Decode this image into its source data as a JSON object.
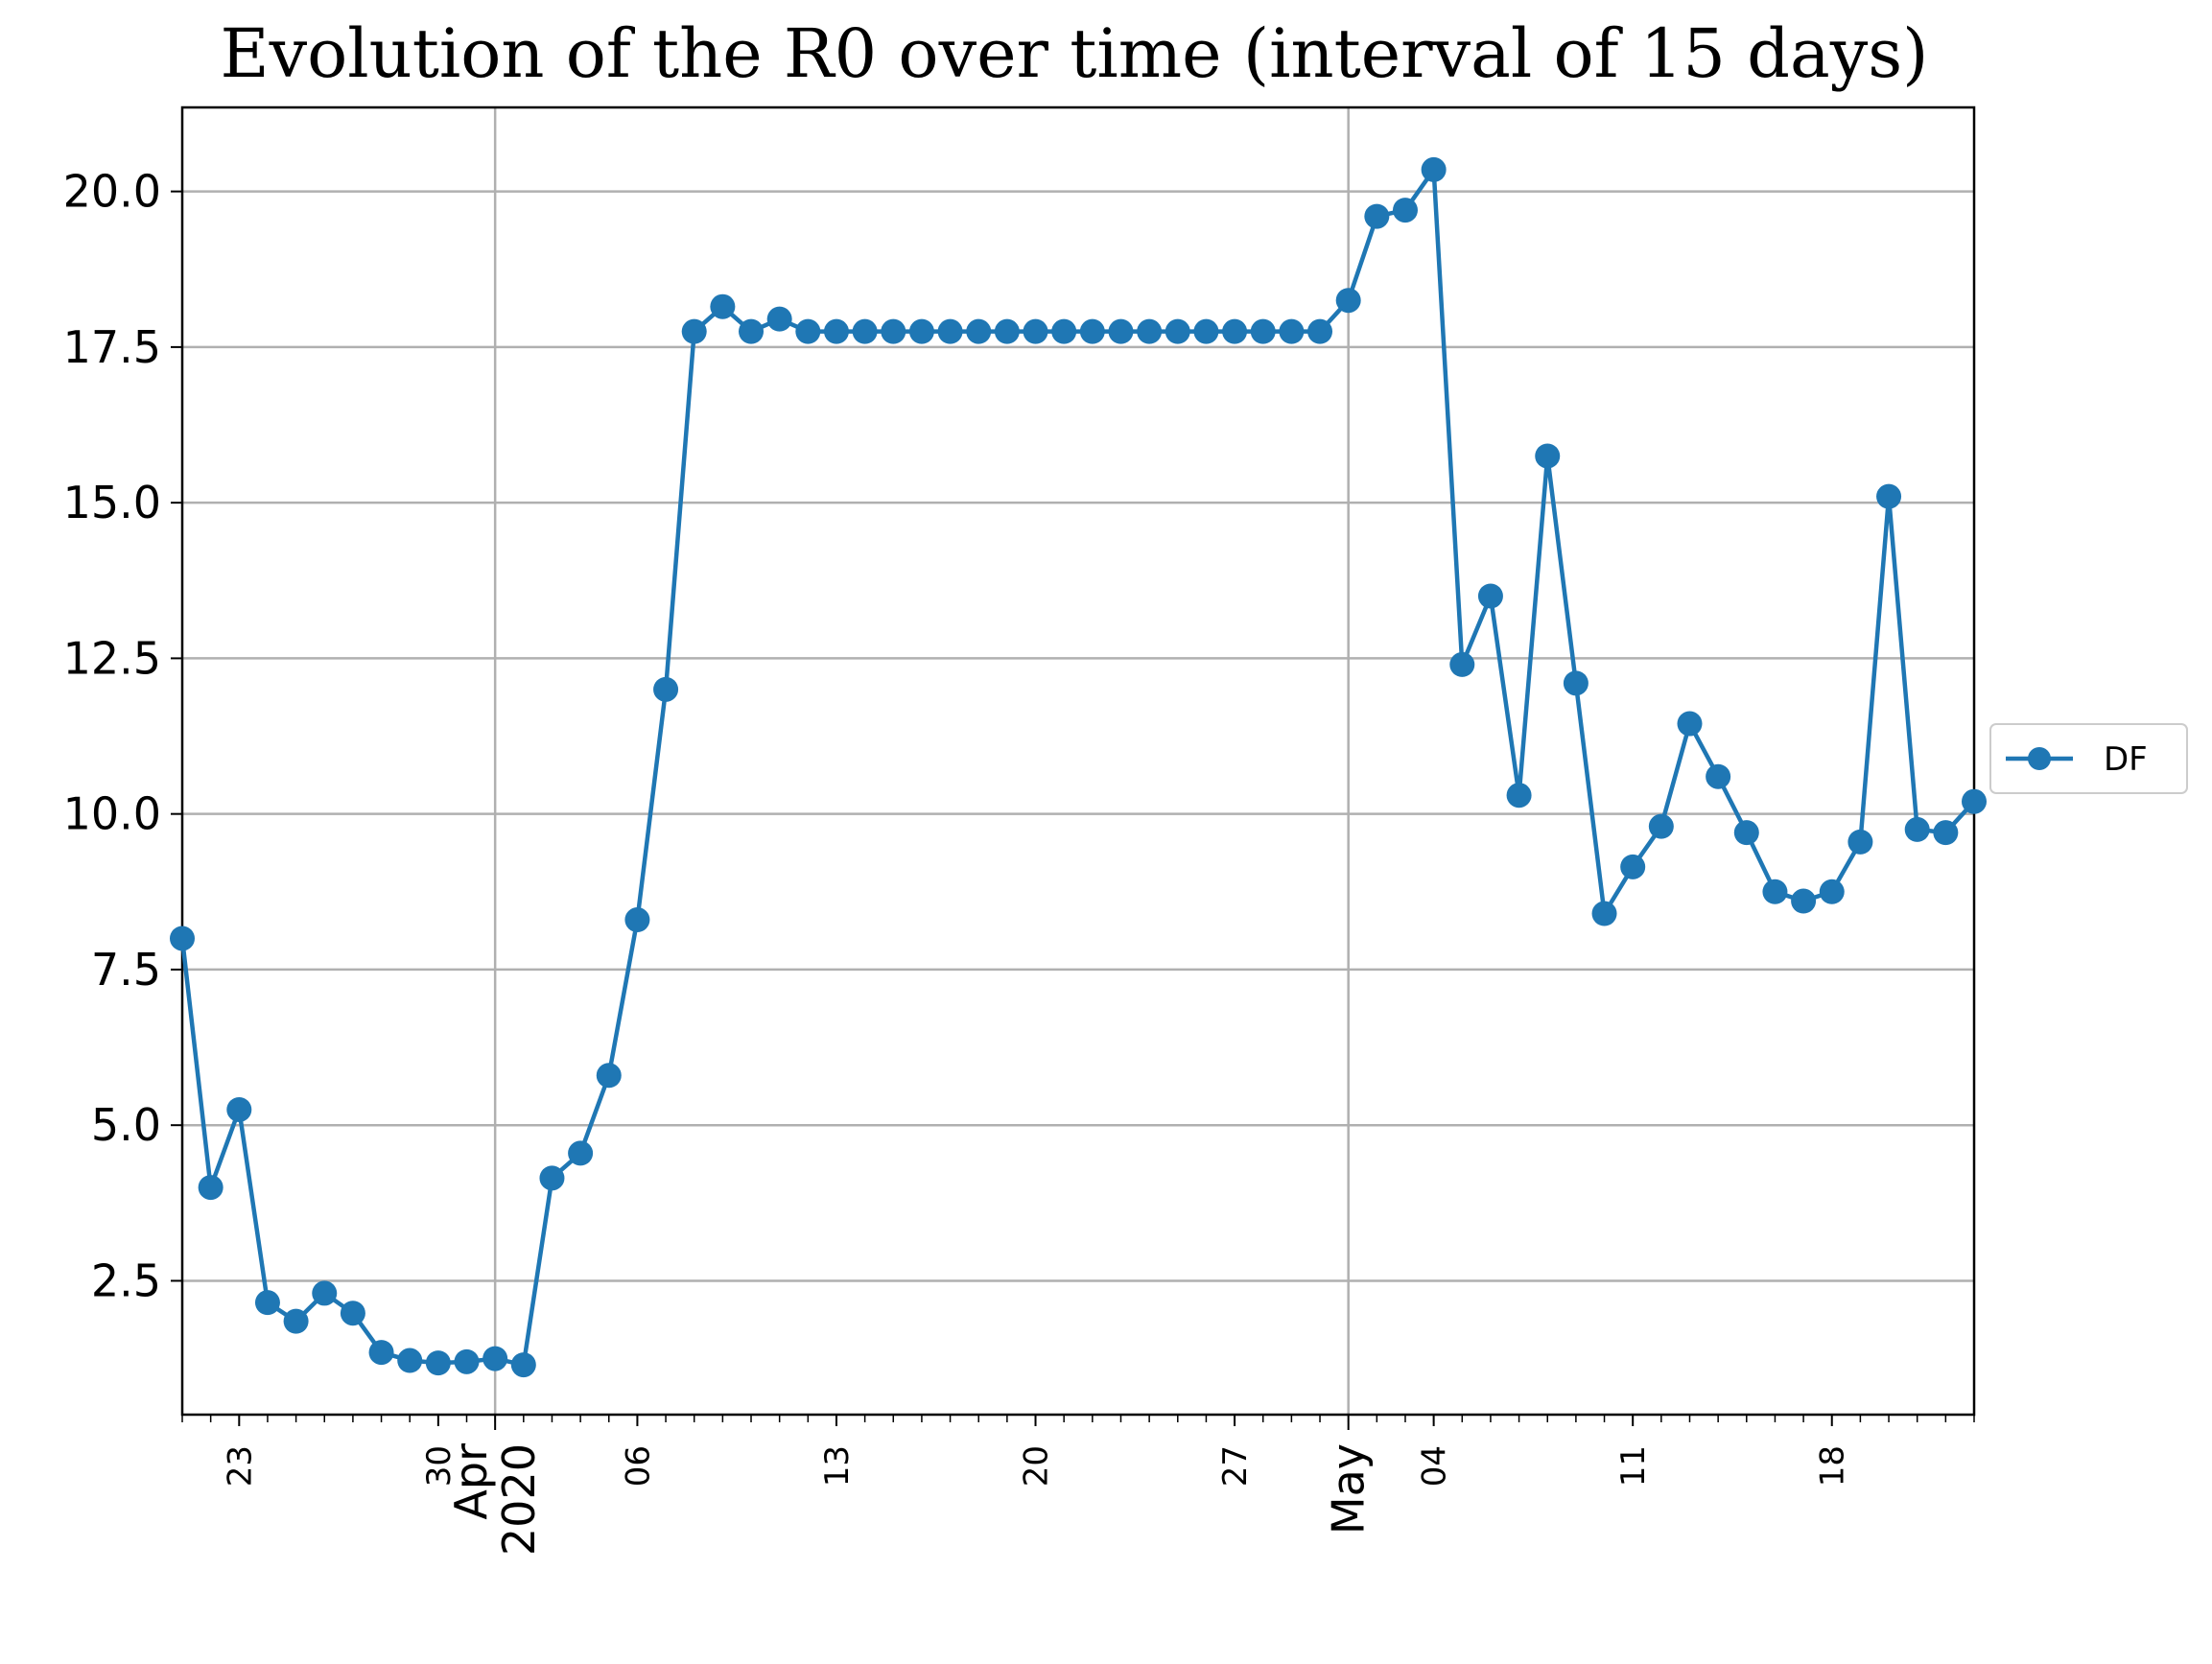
{
  "chart_data": {
    "type": "line",
    "title": "Evolution of the R0 over time (interval of 15 days)",
    "xlabel": "",
    "ylabel": "",
    "x_start": "2020-03-21",
    "x": [
      "2020-03-21",
      "2020-03-22",
      "2020-03-23",
      "2020-03-24",
      "2020-03-25",
      "2020-03-26",
      "2020-03-27",
      "2020-03-28",
      "2020-03-29",
      "2020-03-30",
      "2020-03-31",
      "2020-04-01",
      "2020-04-02",
      "2020-04-03",
      "2020-04-04",
      "2020-04-05",
      "2020-04-06",
      "2020-04-07",
      "2020-04-08",
      "2020-04-09",
      "2020-04-10",
      "2020-04-11",
      "2020-04-12",
      "2020-04-13",
      "2020-04-14",
      "2020-04-15",
      "2020-04-16",
      "2020-04-17",
      "2020-04-18",
      "2020-04-19",
      "2020-04-20",
      "2020-04-21",
      "2020-04-22",
      "2020-04-23",
      "2020-04-24",
      "2020-04-25",
      "2020-04-26",
      "2020-04-27",
      "2020-04-28",
      "2020-04-29",
      "2020-04-30",
      "2020-05-01",
      "2020-05-02",
      "2020-05-03",
      "2020-05-04",
      "2020-05-05",
      "2020-05-06",
      "2020-05-07",
      "2020-05-08",
      "2020-05-09",
      "2020-05-10",
      "2020-05-11",
      "2020-05-12",
      "2020-05-13",
      "2020-05-14",
      "2020-05-15",
      "2020-05-16",
      "2020-05-17",
      "2020-05-18",
      "2020-05-19",
      "2020-05-20",
      "2020-05-21",
      "2020-05-22",
      "2020-05-23"
    ],
    "series": [
      {
        "name": "DF",
        "color": "#1f77b4",
        "marker": "circle",
        "values": [
          8.0,
          4.0,
          5.25,
          2.15,
          1.85,
          2.3,
          1.98,
          1.35,
          1.22,
          1.18,
          1.2,
          1.25,
          1.15,
          4.15,
          4.55,
          5.8,
          8.3,
          12.0,
          17.75,
          18.15,
          17.75,
          17.95,
          17.75,
          17.75,
          17.75,
          17.75,
          17.75,
          17.75,
          17.75,
          17.75,
          17.75,
          17.75,
          17.75,
          17.75,
          17.75,
          17.75,
          17.75,
          17.75,
          17.75,
          17.75,
          17.75,
          18.25,
          19.6,
          19.7,
          20.35,
          12.4,
          13.5,
          10.3,
          15.75,
          12.1,
          8.4,
          9.15,
          9.8,
          11.45,
          10.6,
          9.7,
          8.75,
          8.6,
          8.75,
          9.55,
          15.1,
          9.75,
          9.7,
          10.2
        ]
      }
    ],
    "ylim": [
      0.35,
      21.35
    ],
    "yticks": [
      2.5,
      5.0,
      7.5,
      10.0,
      12.5,
      15.0,
      17.5,
      20.0
    ],
    "ytick_labels": [
      "2.5",
      "5.0",
      "7.5",
      "10.0",
      "12.5",
      "15.0",
      "17.5",
      "20.0"
    ],
    "minor_xtick_labels": [
      {
        "date": "2020-03-23",
        "label": "23"
      },
      {
        "date": "2020-03-30",
        "label": "30"
      },
      {
        "date": "2020-04-06",
        "label": "06"
      },
      {
        "date": "2020-04-13",
        "label": "13"
      },
      {
        "date": "2020-04-20",
        "label": "20"
      },
      {
        "date": "2020-04-27",
        "label": "27"
      },
      {
        "date": "2020-05-04",
        "label": "04"
      },
      {
        "date": "2020-05-11",
        "label": "11"
      },
      {
        "date": "2020-05-18",
        "label": "18"
      }
    ],
    "major_xtick_labels": [
      {
        "date": "2020-04-01",
        "lines": [
          "Apr",
          "2020"
        ]
      },
      {
        "date": "2020-05-01",
        "lines": [
          "May"
        ]
      }
    ],
    "grid": true,
    "legend": {
      "placement": "center-right, outside plot",
      "entries": [
        "DF"
      ]
    }
  }
}
